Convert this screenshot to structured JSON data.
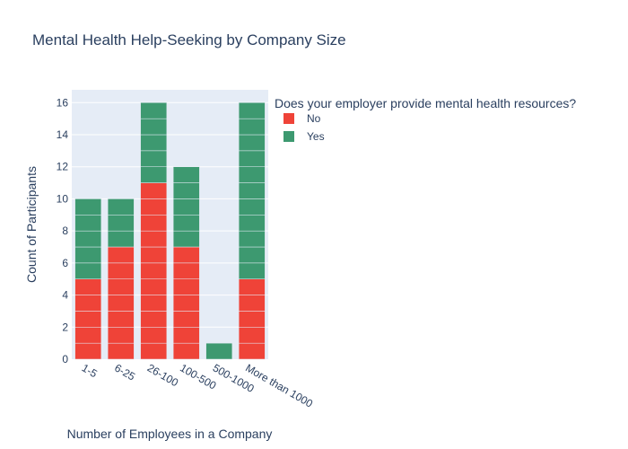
{
  "chart_data": {
    "type": "bar",
    "stacked": true,
    "title": "Mental Health Help-Seeking by Company Size",
    "xlabel": "Number of Employees in a Company",
    "ylabel": "Count of Participants",
    "categories": [
      "1-5",
      "6-25",
      "26-100",
      "100-500",
      "500-1000",
      "More than 1000"
    ],
    "series": [
      {
        "name": "No",
        "color": "#ef4338",
        "values": [
          5,
          7,
          11,
          7,
          0,
          5
        ]
      },
      {
        "name": "Yes",
        "color": "#3d9970",
        "values": [
          5,
          3,
          5,
          5,
          1,
          11
        ]
      }
    ],
    "ylim": [
      0,
      16.8
    ],
    "yticks": [
      0,
      2,
      4,
      6,
      8,
      10,
      12,
      14,
      16
    ],
    "legend_title": "Does your employer provide mental health resources?",
    "legend_position": "top-right",
    "grid": true,
    "plot_background": "#e5ecf6"
  }
}
